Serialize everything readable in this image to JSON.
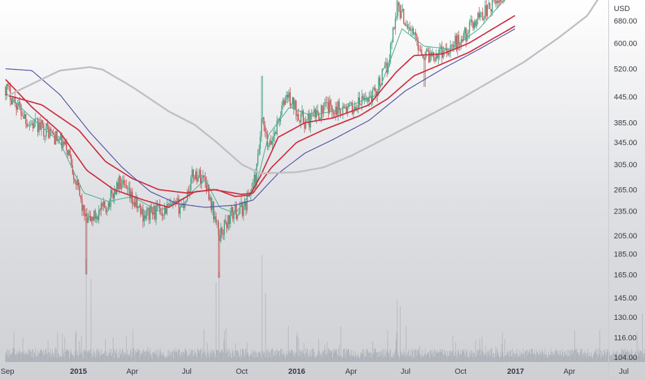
{
  "chart_data": {
    "type": "candlestick",
    "unit": "USD",
    "y_scale": "log",
    "ylim": [
      100,
      900
    ],
    "y_ticks": [
      680,
      600,
      520,
      445,
      385,
      345,
      305,
      265,
      235,
      205,
      185,
      165,
      145,
      130,
      116,
      104
    ],
    "y_tick_labels": [
      "680.00",
      "600.00",
      "520.00",
      "445.00",
      "385.00",
      "345.00",
      "305.00",
      "265.00",
      "235.00",
      "205.00",
      "185.00",
      "165.00",
      "145.00",
      "130.00",
      "116.00",
      "104.00"
    ],
    "x_range": [
      "2014-09-01",
      "2017-10-01"
    ],
    "x_ticks": [
      {
        "label": "Sep",
        "date": "2014-09-01",
        "bold": false
      },
      {
        "label": "2015",
        "date": "2015-01-01",
        "bold": true
      },
      {
        "label": "Apr",
        "date": "2015-04-01",
        "bold": false
      },
      {
        "label": "Jul",
        "date": "2015-07-01",
        "bold": false
      },
      {
        "label": "Oct",
        "date": "2015-10-01",
        "bold": false
      },
      {
        "label": "2016",
        "date": "2016-01-01",
        "bold": true
      },
      {
        "label": "Apr",
        "date": "2016-04-01",
        "bold": false
      },
      {
        "label": "Jul",
        "date": "2016-07-01",
        "bold": false
      },
      {
        "label": "Oct",
        "date": "2016-10-01",
        "bold": false
      },
      {
        "label": "2017",
        "date": "2017-01-01",
        "bold": true
      },
      {
        "label": "Apr",
        "date": "2017-04-01",
        "bold": false
      },
      {
        "label": "Jul",
        "date": "2017-07-01",
        "bold": false
      }
    ],
    "price_anchors": [
      [
        "2014-09-01",
        470
      ],
      [
        "2014-10-10",
        385
      ],
      [
        "2014-11-10",
        370
      ],
      [
        "2014-12-15",
        330
      ],
      [
        "2015-01-14",
        220
      ],
      [
        "2015-02-15",
        240
      ],
      [
        "2015-03-10",
        275
      ],
      [
        "2015-04-20",
        230
      ],
      [
        "2015-05-20",
        237
      ],
      [
        "2015-06-25",
        243
      ],
      [
        "2015-07-12",
        290
      ],
      [
        "2015-08-01",
        282
      ],
      [
        "2015-08-24",
        205
      ],
      [
        "2015-09-15",
        232
      ],
      [
        "2015-10-05",
        240
      ],
      [
        "2015-10-25",
        285
      ],
      [
        "2015-11-04",
        390
      ],
      [
        "2015-11-15",
        330
      ],
      [
        "2015-12-15",
        450
      ],
      [
        "2016-01-15",
        385
      ],
      [
        "2016-02-20",
        420
      ],
      [
        "2016-04-01",
        415
      ],
      [
        "2016-05-10",
        455
      ],
      [
        "2016-06-01",
        530
      ],
      [
        "2016-06-17",
        740
      ],
      [
        "2016-07-01",
        680
      ],
      [
        "2016-08-02",
        560
      ],
      [
        "2016-09-01",
        575
      ],
      [
        "2016-10-01",
        610
      ],
      [
        "2016-11-01",
        700
      ],
      [
        "2016-12-10",
        770
      ],
      [
        "2016-12-31",
        900
      ]
    ],
    "ma_series": [
      {
        "color": "#4caf8f",
        "width": 1.1,
        "points": [
          [
            "2014-09-01",
            455
          ],
          [
            "2014-10-15",
            395
          ],
          [
            "2014-12-01",
            345
          ],
          [
            "2015-01-10",
            260
          ],
          [
            "2015-02-20",
            248
          ],
          [
            "2015-04-01",
            255
          ],
          [
            "2015-05-15",
            235
          ],
          [
            "2015-07-01",
            255
          ],
          [
            "2015-08-01",
            280
          ],
          [
            "2015-08-25",
            240
          ],
          [
            "2015-09-20",
            232
          ],
          [
            "2015-10-25",
            270
          ],
          [
            "2015-11-15",
            360
          ],
          [
            "2015-12-20",
            420
          ],
          [
            "2016-01-25",
            400
          ],
          [
            "2016-03-15",
            415
          ],
          [
            "2016-05-15",
            450
          ],
          [
            "2016-06-25",
            650
          ],
          [
            "2016-08-01",
            590
          ],
          [
            "2016-09-15",
            580
          ],
          [
            "2016-11-01",
            650
          ],
          [
            "2016-12-31",
            820
          ]
        ]
      },
      {
        "color": "#cc2f3f",
        "width": 1.8,
        "points": [
          [
            "2014-09-01",
            490
          ],
          [
            "2014-10-15",
            420
          ],
          [
            "2014-12-01",
            365
          ],
          [
            "2015-01-15",
            295
          ],
          [
            "2015-03-01",
            265
          ],
          [
            "2015-04-20",
            250
          ],
          [
            "2015-06-01",
            240
          ],
          [
            "2015-07-15",
            262
          ],
          [
            "2015-08-20",
            265
          ],
          [
            "2015-09-20",
            255
          ],
          [
            "2015-10-15",
            257
          ],
          [
            "2015-11-01",
            285
          ],
          [
            "2015-12-01",
            355
          ],
          [
            "2016-01-15",
            385
          ],
          [
            "2016-03-01",
            395
          ],
          [
            "2016-05-01",
            425
          ],
          [
            "2016-06-15",
            510
          ],
          [
            "2016-07-15",
            560
          ],
          [
            "2016-09-01",
            565
          ],
          [
            "2016-10-15",
            600
          ],
          [
            "2016-12-31",
            700
          ]
        ]
      },
      {
        "color": "#cc2f3f",
        "width": 1.8,
        "points": [
          [
            "2014-09-01",
            450
          ],
          [
            "2014-11-01",
            425
          ],
          [
            "2015-01-01",
            370
          ],
          [
            "2015-02-15",
            310
          ],
          [
            "2015-04-01",
            282
          ],
          [
            "2015-05-15",
            265
          ],
          [
            "2015-07-01",
            260
          ],
          [
            "2015-08-15",
            265
          ],
          [
            "2015-10-01",
            258
          ],
          [
            "2015-10-20",
            260
          ],
          [
            "2015-11-20",
            300
          ],
          [
            "2016-01-01",
            345
          ],
          [
            "2016-02-15",
            370
          ],
          [
            "2016-04-15",
            400
          ],
          [
            "2016-06-01",
            440
          ],
          [
            "2016-07-15",
            500
          ],
          [
            "2016-09-01",
            535
          ],
          [
            "2016-10-15",
            570
          ],
          [
            "2016-12-31",
            660
          ]
        ]
      },
      {
        "color": "#4e4fa0",
        "width": 1.2,
        "points": [
          [
            "2014-09-01",
            520
          ],
          [
            "2014-10-15",
            515
          ],
          [
            "2014-12-01",
            450
          ],
          [
            "2015-01-20",
            365
          ],
          [
            "2015-03-15",
            300
          ],
          [
            "2015-05-01",
            262
          ],
          [
            "2015-06-15",
            245
          ],
          [
            "2015-08-01",
            240
          ],
          [
            "2015-09-20",
            243
          ],
          [
            "2015-10-20",
            250
          ],
          [
            "2015-12-01",
            290
          ],
          [
            "2016-01-15",
            325
          ],
          [
            "2016-03-01",
            350
          ],
          [
            "2016-05-01",
            390
          ],
          [
            "2016-07-01",
            460
          ],
          [
            "2016-09-01",
            520
          ],
          [
            "2016-11-01",
            580
          ],
          [
            "2016-12-31",
            650
          ]
        ]
      },
      {
        "color": "#bfbfc4",
        "width": 2.5,
        "points": [
          [
            "2014-09-01",
            445
          ],
          [
            "2014-12-01",
            515
          ],
          [
            "2015-01-20",
            525
          ],
          [
            "2015-02-10",
            518
          ],
          [
            "2015-04-01",
            470
          ],
          [
            "2015-06-01",
            410
          ],
          [
            "2015-07-15",
            380
          ],
          [
            "2015-08-20",
            345
          ],
          [
            "2015-10-01",
            305
          ],
          [
            "2015-11-01",
            290
          ],
          [
            "2016-01-01",
            292
          ],
          [
            "2016-02-15",
            300
          ],
          [
            "2016-04-01",
            320
          ],
          [
            "2016-06-01",
            355
          ],
          [
            "2016-08-01",
            395
          ],
          [
            "2016-10-01",
            440
          ],
          [
            "2016-12-01",
            495
          ],
          [
            "2017-01-15",
            540
          ],
          [
            "2017-03-15",
            620
          ],
          [
            "2017-05-01",
            700
          ],
          [
            "2017-06-01",
            820
          ]
        ]
      }
    ],
    "volume_series": {
      "color": "#9aa0aa",
      "end_date": "2017-10-01"
    }
  }
}
